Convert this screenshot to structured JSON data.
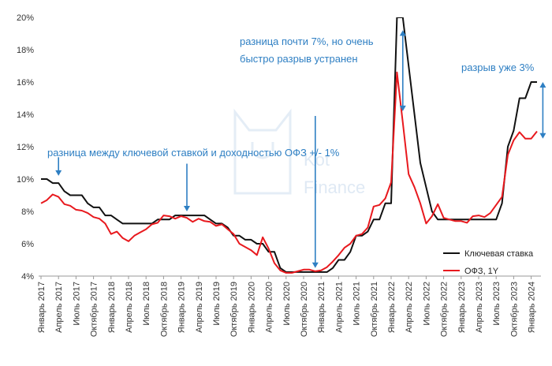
{
  "chart_data": {
    "type": "line",
    "x": [
      "Янв 2017",
      "Фев 2017",
      "Мар 2017",
      "Апр 2017",
      "Май 2017",
      "Июн 2017",
      "Июл 2017",
      "Авг 2017",
      "Сен 2017",
      "Окт 2017",
      "Ноя 2017",
      "Дек 2017",
      "Янв 2018",
      "Фев 2018",
      "Мар 2018",
      "Апр 2018",
      "Май 2018",
      "Июн 2018",
      "Июл 2018",
      "Авг 2018",
      "Сен 2018",
      "Окт 2018",
      "Ноя 2018",
      "Дек 2018",
      "Янв 2019",
      "Фев 2019",
      "Мар 2019",
      "Апр 2019",
      "Май 2019",
      "Июн 2019",
      "Июл 2019",
      "Авг 2019",
      "Сен 2019",
      "Окт 2019",
      "Ноя 2019",
      "Дек 2019",
      "Янв 2020",
      "Фев 2020",
      "Мар 2020",
      "Апр 2020",
      "Май 2020",
      "Июн 2020",
      "Июл 2020",
      "Авг 2020",
      "Сен 2020",
      "Окт 2020",
      "Ноя 2020",
      "Дек 2020",
      "Янв 2021",
      "Фев 2021",
      "Мар 2021",
      "Апр 2021",
      "Май 2021",
      "Июн 2021",
      "Июл 2021",
      "Авг 2021",
      "Сен 2021",
      "Окт 2021",
      "Ноя 2021",
      "Дек 2021",
      "Янв 2022",
      "Фев 2022",
      "Мар 2022",
      "Апр 2022",
      "Май 2022",
      "Июн 2022",
      "Июл 2022",
      "Авг 2022",
      "Сен 2022",
      "Окт 2022",
      "Ноя 2022",
      "Дек 2022",
      "Янв 2023",
      "Фев 2023",
      "Мар 2023",
      "Апр 2023",
      "Май 2023",
      "Июн 2023",
      "Июл 2023",
      "Авг 2023",
      "Сен 2023",
      "Окт 2023",
      "Ноя 2023",
      "Дек 2023",
      "Янв 2024",
      "Фев 2024"
    ],
    "x_tick_labels": [
      {
        "index": 0,
        "label": "Январь 2017"
      },
      {
        "index": 3,
        "label": "Апрель 2017"
      },
      {
        "index": 6,
        "label": "Июль 2017"
      },
      {
        "index": 9,
        "label": "Октябрь 2017"
      },
      {
        "index": 12,
        "label": "Январь 2018"
      },
      {
        "index": 15,
        "label": "Апрель 2018"
      },
      {
        "index": 18,
        "label": "Июль 2018"
      },
      {
        "index": 21,
        "label": "Октябрь 2018"
      },
      {
        "index": 24,
        "label": "Январь 2019"
      },
      {
        "index": 27,
        "label": "Апрель 2019"
      },
      {
        "index": 30,
        "label": "Июль 2019"
      },
      {
        "index": 33,
        "label": "Октябрь 2019"
      },
      {
        "index": 36,
        "label": "Январь 2020"
      },
      {
        "index": 39,
        "label": "Апрель 2020"
      },
      {
        "index": 42,
        "label": "Июль 2020"
      },
      {
        "index": 45,
        "label": "Октябрь 2020"
      },
      {
        "index": 48,
        "label": "Январь 2021"
      },
      {
        "index": 51,
        "label": "Апрель 2021"
      },
      {
        "index": 54,
        "label": "Июль 2021"
      },
      {
        "index": 57,
        "label": "Октябрь 2021"
      },
      {
        "index": 60,
        "label": "Январь 2022"
      },
      {
        "index": 63,
        "label": "Апрель 2022"
      },
      {
        "index": 66,
        "label": "Июль 2022"
      },
      {
        "index": 69,
        "label": "Октябрь 2022"
      },
      {
        "index": 72,
        "label": "Январь 2023"
      },
      {
        "index": 75,
        "label": "Апрель 2023"
      },
      {
        "index": 78,
        "label": "Июль 2023"
      },
      {
        "index": 81,
        "label": "Октябрь 2023"
      },
      {
        "index": 84,
        "label": "Январь 2024"
      }
    ],
    "y_ticks": [
      "4%",
      "6%",
      "8%",
      "10%",
      "12%",
      "14%",
      "16%",
      "18%",
      "20%"
    ],
    "ylim": [
      4,
      20
    ],
    "series": [
      {
        "name": "Ключевая ставка",
        "color": "#111111",
        "values": [
          10,
          10,
          9.75,
          9.75,
          9.25,
          9,
          9,
          9,
          8.5,
          8.25,
          8.25,
          7.75,
          7.75,
          7.5,
          7.25,
          7.25,
          7.25,
          7.25,
          7.25,
          7.25,
          7.5,
          7.5,
          7.5,
          7.75,
          7.75,
          7.75,
          7.75,
          7.75,
          7.75,
          7.5,
          7.25,
          7.25,
          7,
          6.5,
          6.5,
          6.25,
          6.25,
          6,
          6,
          5.5,
          5.5,
          4.5,
          4.25,
          4.25,
          4.25,
          4.25,
          4.25,
          4.25,
          4.25,
          4.25,
          4.5,
          5,
          5,
          5.5,
          6.5,
          6.5,
          6.75,
          7.5,
          7.5,
          8.5,
          8.5,
          20,
          20,
          17,
          14,
          11,
          9.5,
          8,
          7.5,
          7.5,
          7.5,
          7.5,
          7.5,
          7.5,
          7.5,
          7.5,
          7.5,
          7.5,
          7.5,
          8.5,
          12,
          13,
          15,
          15,
          16,
          16
        ]
      },
      {
        "name": "ОФЗ, 1Y",
        "color": "#E8191E",
        "values": [
          8.5,
          8.7,
          9.05,
          8.9,
          8.45,
          8.35,
          8.1,
          8.05,
          7.9,
          7.65,
          7.55,
          7.25,
          6.6,
          6.75,
          6.35,
          6.15,
          6.5,
          6.7,
          6.9,
          7.2,
          7.3,
          7.75,
          7.7,
          7.55,
          7.7,
          7.6,
          7.35,
          7.55,
          7.4,
          7.35,
          7.1,
          7.2,
          6.9,
          6.6,
          6.0,
          5.8,
          5.6,
          5.3,
          6.4,
          5.7,
          4.8,
          4.35,
          4.2,
          4.2,
          4.3,
          4.4,
          4.4,
          4.3,
          4.35,
          4.55,
          4.9,
          5.3,
          5.75,
          6.0,
          6.5,
          6.6,
          7.0,
          8.3,
          8.4,
          8.8,
          9.8,
          16.6,
          13.5,
          10.3,
          9.5,
          8.5,
          7.25,
          7.7,
          8.45,
          7.6,
          7.5,
          7.4,
          7.4,
          7.3,
          7.7,
          7.75,
          7.65,
          7.9,
          8.4,
          8.9,
          11.5,
          12.4,
          12.9,
          12.5,
          12.5,
          12.95
        ]
      }
    ],
    "annotations": [
      {
        "text": "разница между ключевой ставкой и доходностью ОФЗ +/- 1%",
        "color": "#2E7FC3"
      },
      {
        "text_lines": [
          "разница почти 7%, но очень",
          "быстро разрыв устранен"
        ],
        "color": "#2E7FC3"
      },
      {
        "text": "разрыв уже 3%",
        "color": "#2E7FC3"
      }
    ],
    "arrows": [
      {
        "type": "down",
        "at_index": 3,
        "from_value": 11.35,
        "to_value": 10.2
      },
      {
        "type": "down",
        "at_index": 25,
        "from_value": 10.95,
        "to_value": 8.0
      },
      {
        "type": "down",
        "at_index": 47,
        "from_value": 13.9,
        "to_value": 4.5
      },
      {
        "type": "double",
        "at_index": 62,
        "from_value": 14.2,
        "to_value": 19.2
      },
      {
        "type": "double",
        "at_index": 86,
        "from_value": 12.5,
        "to_value": 16.0
      }
    ],
    "watermark": [
      "Kot",
      "Finance"
    ],
    "legend_position": "bottom-right"
  }
}
